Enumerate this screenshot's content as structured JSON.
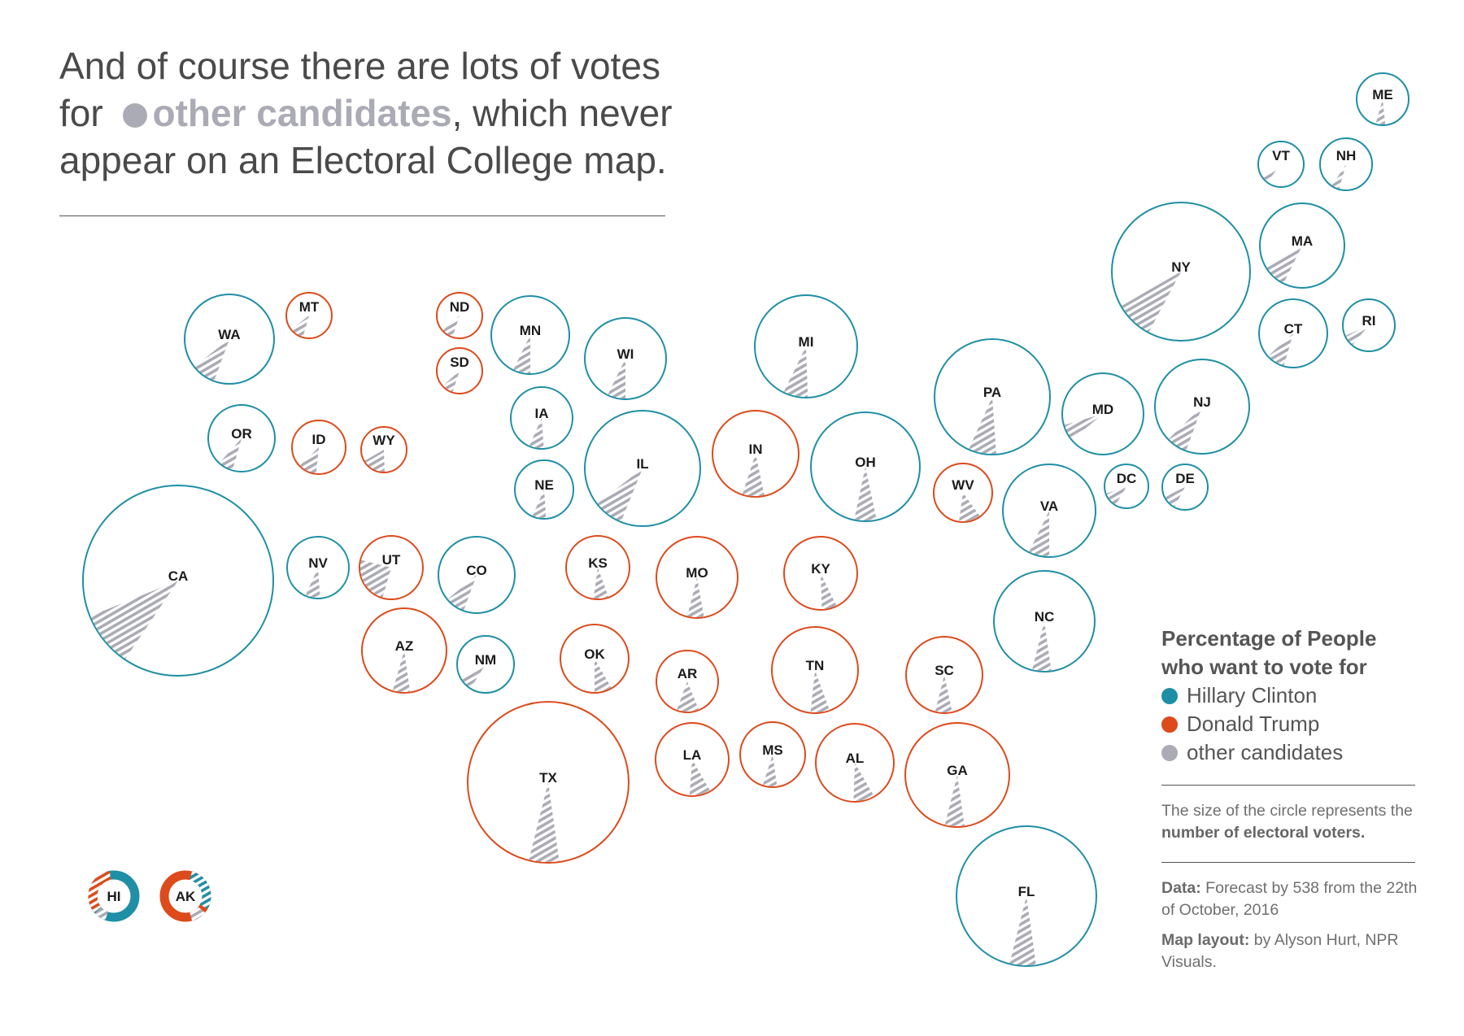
{
  "headline": {
    "line1": "And of course there are lots of votes",
    "line2_pre": "for ",
    "highlight": "other candidates",
    "line2_post": ", which never",
    "line3": "appear on an Electoral College map."
  },
  "colors": {
    "clinton": "#1f8fa5",
    "trump": "#dd4a1c",
    "other": "#ababb5"
  },
  "legend": {
    "title_line1": "Percentage of People",
    "title_line2": "who want to vote for",
    "items": [
      {
        "label": "Hillary Clinton",
        "color": "#1f8fa5"
      },
      {
        "label": "Donald Trump",
        "color": "#dd4a1c"
      },
      {
        "label": "other candidates",
        "color": "#ababb5"
      }
    ]
  },
  "size_note": {
    "pre": "The size of the circle represents the ",
    "bold": "number of electoral voters."
  },
  "credits": {
    "data_label": "Data:",
    "data_text": " Forecast by 538 from the 22th of October, 2016",
    "layout_label": "Map layout:",
    "layout_text": " by Alyson Hurt, NPR Visuals."
  },
  "states": [
    {
      "abbr": "ME",
      "electoral_votes": 4,
      "leader": "clinton"
    },
    {
      "abbr": "VT",
      "electoral_votes": 3,
      "leader": "clinton"
    },
    {
      "abbr": "NH",
      "electoral_votes": 4,
      "leader": "clinton"
    },
    {
      "abbr": "MA",
      "electoral_votes": 11,
      "leader": "clinton"
    },
    {
      "abbr": "NY",
      "electoral_votes": 29,
      "leader": "clinton"
    },
    {
      "abbr": "CT",
      "electoral_votes": 7,
      "leader": "clinton"
    },
    {
      "abbr": "RI",
      "electoral_votes": 4,
      "leader": "clinton"
    },
    {
      "abbr": "WA",
      "electoral_votes": 12,
      "leader": "clinton"
    },
    {
      "abbr": "MT",
      "electoral_votes": 3,
      "leader": "trump"
    },
    {
      "abbr": "ND",
      "electoral_votes": 3,
      "leader": "trump"
    },
    {
      "abbr": "SD",
      "electoral_votes": 3,
      "leader": "trump"
    },
    {
      "abbr": "MN",
      "electoral_votes": 10,
      "leader": "clinton"
    },
    {
      "abbr": "WI",
      "electoral_votes": 10,
      "leader": "clinton"
    },
    {
      "abbr": "MI",
      "electoral_votes": 16,
      "leader": "clinton"
    },
    {
      "abbr": "PA",
      "electoral_votes": 20,
      "leader": "clinton"
    },
    {
      "abbr": "MD",
      "electoral_votes": 10,
      "leader": "clinton"
    },
    {
      "abbr": "NJ",
      "electoral_votes": 14,
      "leader": "clinton"
    },
    {
      "abbr": "OR",
      "electoral_votes": 7,
      "leader": "clinton"
    },
    {
      "abbr": "ID",
      "electoral_votes": 4,
      "leader": "trump"
    },
    {
      "abbr": "WY",
      "electoral_votes": 3,
      "leader": "trump"
    },
    {
      "abbr": "IA",
      "electoral_votes": 6,
      "leader": "clinton"
    },
    {
      "abbr": "NE",
      "electoral_votes": 5,
      "leader": "clinton"
    },
    {
      "abbr": "IL",
      "electoral_votes": 20,
      "leader": "clinton"
    },
    {
      "abbr": "IN",
      "electoral_votes": 11,
      "leader": "trump"
    },
    {
      "abbr": "OH",
      "electoral_votes": 18,
      "leader": "clinton"
    },
    {
      "abbr": "WV",
      "electoral_votes": 5,
      "leader": "trump"
    },
    {
      "abbr": "VA",
      "electoral_votes": 13,
      "leader": "clinton"
    },
    {
      "abbr": "DC",
      "electoral_votes": 3,
      "leader": "clinton"
    },
    {
      "abbr": "DE",
      "electoral_votes": 3,
      "leader": "clinton"
    },
    {
      "abbr": "CA",
      "electoral_votes": 55,
      "leader": "clinton"
    },
    {
      "abbr": "NV",
      "electoral_votes": 6,
      "leader": "clinton"
    },
    {
      "abbr": "UT",
      "electoral_votes": 6,
      "leader": "trump"
    },
    {
      "abbr": "CO",
      "electoral_votes": 9,
      "leader": "clinton"
    },
    {
      "abbr": "KS",
      "electoral_votes": 6,
      "leader": "trump"
    },
    {
      "abbr": "MO",
      "electoral_votes": 10,
      "leader": "trump"
    },
    {
      "abbr": "KY",
      "electoral_votes": 8,
      "leader": "trump"
    },
    {
      "abbr": "NC",
      "electoral_votes": 15,
      "leader": "clinton"
    },
    {
      "abbr": "AZ",
      "electoral_votes": 11,
      "leader": "trump"
    },
    {
      "abbr": "NM",
      "electoral_votes": 5,
      "leader": "clinton"
    },
    {
      "abbr": "OK",
      "electoral_votes": 7,
      "leader": "trump"
    },
    {
      "abbr": "AR",
      "electoral_votes": 6,
      "leader": "trump"
    },
    {
      "abbr": "TN",
      "electoral_votes": 11,
      "leader": "trump"
    },
    {
      "abbr": "SC",
      "electoral_votes": 9,
      "leader": "trump"
    },
    {
      "abbr": "TX",
      "electoral_votes": 38,
      "leader": "trump"
    },
    {
      "abbr": "LA",
      "electoral_votes": 8,
      "leader": "trump"
    },
    {
      "abbr": "MS",
      "electoral_votes": 6,
      "leader": "trump"
    },
    {
      "abbr": "AL",
      "electoral_votes": 9,
      "leader": "trump"
    },
    {
      "abbr": "GA",
      "electoral_votes": 16,
      "leader": "trump"
    },
    {
      "abbr": "FL",
      "electoral_votes": 29,
      "leader": "clinton"
    },
    {
      "abbr": "HI",
      "electoral_votes": 4,
      "leader": "clinton"
    },
    {
      "abbr": "AK",
      "electoral_votes": 3,
      "leader": "trump"
    }
  ]
}
